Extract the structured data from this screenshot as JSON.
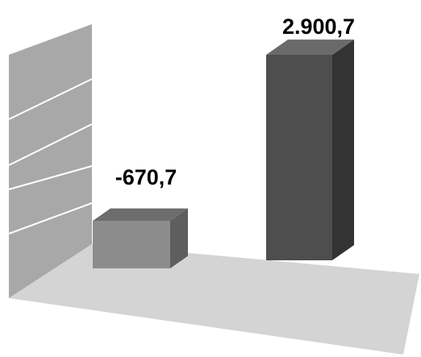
{
  "chart_data": {
    "type": "bar",
    "style": "3d-column",
    "categories": [
      "",
      ""
    ],
    "values": [
      -670.7,
      2900.7
    ],
    "data_labels": [
      "-670,7",
      "2.900,7"
    ],
    "grid": true,
    "legend": "none"
  },
  "colors": {
    "wall": "#a8a8a8",
    "floor": "#d4d4d4",
    "gridline": "#ffffff",
    "bar_negative_front": "#8c8c8c",
    "bar_negative_top": "#6d6d6d",
    "bar_negative_side": "#5e5e5e",
    "bar_positive_front": "#4e4e4e",
    "bar_positive_top": "#6a6a6a",
    "bar_positive_side": "#333333"
  }
}
